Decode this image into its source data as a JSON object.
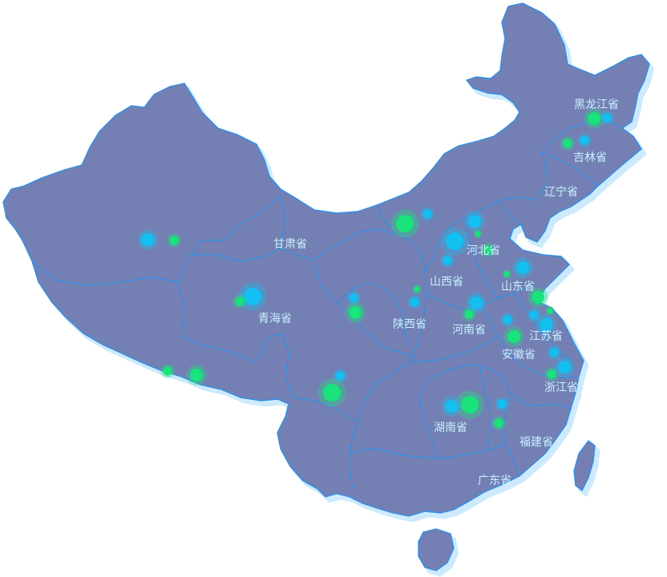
{
  "map": {
    "colors": {
      "land": "#7480b3",
      "border": "#2f8fe6",
      "halo": "#cdeafc",
      "label": "#c8f0ff",
      "dot_green": "#19e37a",
      "dot_blue": "#14bff2"
    },
    "labels": {
      "heilongjiang": "黑龙江省",
      "jilin": "吉林省",
      "liaoning": "辽宁省",
      "gansu": "甘肃省",
      "hebei": "河北省",
      "shanxi": "山西省",
      "shandong": "山东省",
      "qinghai": "青海省",
      "shaanxi": "陕西省",
      "henan": "河南省",
      "jiangsu": "江苏省",
      "anhui": "安徽省",
      "zhejiang": "浙江省",
      "hunan": "湖南省",
      "fujian": "福建省",
      "guangdong": "广东省"
    },
    "dots": [
      {
        "color": "green",
        "size": 3
      },
      {
        "color": "blue",
        "size": 2
      },
      {
        "color": "green",
        "size": 2
      },
      {
        "color": "blue",
        "size": 2
      },
      {
        "color": "green",
        "size": 4
      },
      {
        "color": "blue",
        "size": 2
      },
      {
        "color": "blue",
        "size": 3
      },
      {
        "color": "green",
        "size": 2
      },
      {
        "color": "blue",
        "size": 3
      },
      {
        "color": "green",
        "size": 1
      },
      {
        "color": "blue",
        "size": 4
      },
      {
        "color": "green",
        "size": 2
      },
      {
        "color": "blue",
        "size": 2
      },
      {
        "color": "green",
        "size": 1
      },
      {
        "color": "blue",
        "size": 3
      },
      {
        "color": "green",
        "size": 3
      },
      {
        "color": "blue",
        "size": 2
      },
      {
        "color": "green",
        "size": 1
      },
      {
        "color": "blue",
        "size": 2
      },
      {
        "color": "green",
        "size": 2
      },
      {
        "color": "blue",
        "size": 3
      },
      {
        "color": "blue",
        "size": 4
      },
      {
        "color": "green",
        "size": 2
      },
      {
        "color": "blue",
        "size": 2
      },
      {
        "color": "green",
        "size": 1
      },
      {
        "color": "blue",
        "size": 2
      },
      {
        "color": "green",
        "size": 3
      },
      {
        "color": "blue",
        "size": 3
      },
      {
        "color": "green",
        "size": 3
      },
      {
        "color": "blue",
        "size": 2
      },
      {
        "color": "green",
        "size": 2
      },
      {
        "color": "blue",
        "size": 3
      },
      {
        "color": "green",
        "size": 2
      },
      {
        "color": "green",
        "size": 3
      },
      {
        "color": "blue",
        "size": 2
      },
      {
        "color": "green",
        "size": 4
      },
      {
        "color": "blue",
        "size": 2
      },
      {
        "color": "green",
        "size": 4
      },
      {
        "color": "blue",
        "size": 3
      },
      {
        "color": "green",
        "size": 2
      }
    ]
  }
}
